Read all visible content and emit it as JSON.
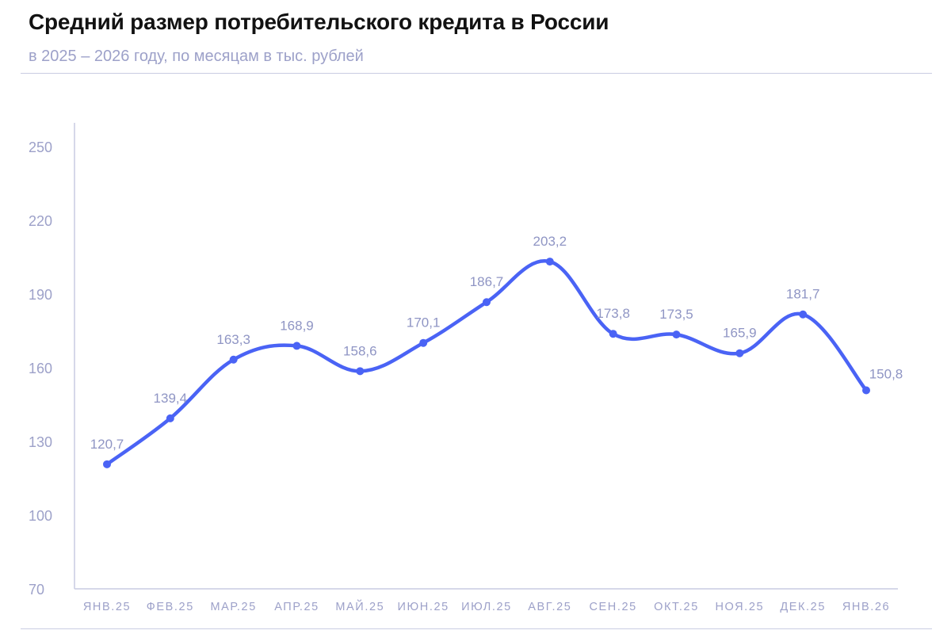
{
  "header": {
    "title": "Средний размер потребительского кредита в России",
    "subtitle": "в 2025 – 2026 году, по месяцам в тыс. рублей"
  },
  "chart_data": {
    "type": "line",
    "title": "Средний размер потребительского кредита в России",
    "subtitle": "в 2025 – 2026 году, по месяцам в тыс. рублей",
    "xlabel": "",
    "ylabel": "",
    "categories": [
      "ЯНВ.25",
      "ФЕВ.25",
      "МАР.25",
      "АПР.25",
      "МАЙ.25",
      "ИЮН.25",
      "ИЮЛ.25",
      "АВГ.25",
      "СЕН.25",
      "ОКТ.25",
      "НОЯ.25",
      "ДЕК.25",
      "ЯНВ.26"
    ],
    "values": [
      120.7,
      139.4,
      163.3,
      168.9,
      158.6,
      170.1,
      186.7,
      203.2,
      173.8,
      173.5,
      165.9,
      181.7,
      150.8
    ],
    "value_labels": [
      "120,7",
      "139,4",
      "163,3",
      "168,9",
      "158,6",
      "170,1",
      "186,7",
      "203,2",
      "173,8",
      "173,5",
      "165,9",
      "181,7",
      "150,8"
    ],
    "ylim": [
      70,
      260
    ],
    "yticks": [
      70,
      100,
      130,
      160,
      190,
      220,
      250
    ],
    "grid": false,
    "legend": "none",
    "line_color": "#4a63f5",
    "text_color": "#9da1c9"
  }
}
